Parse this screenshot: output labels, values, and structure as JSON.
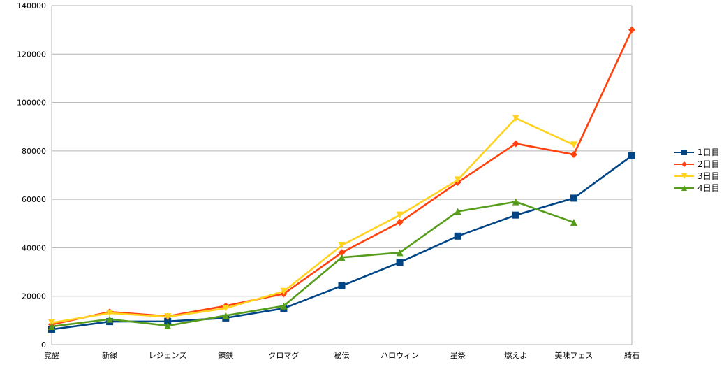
{
  "chart_data": {
    "type": "line",
    "title": "",
    "xlabel": "",
    "ylabel": "",
    "ylim": [
      0,
      140000
    ],
    "yticks": [
      0,
      20000,
      40000,
      60000,
      80000,
      100000,
      120000,
      140000
    ],
    "grid": "horizontal",
    "legend_position": "right",
    "categories": [
      "覚醒",
      "新緑",
      "レジェンズ",
      "錬鉄",
      "クロマグ",
      "秘伝",
      "ハロウィン",
      "星祭",
      "燃えよ",
      "美味フェス",
      "綺石"
    ],
    "series": [
      {
        "name": "1日目",
        "color": "#004586",
        "marker": "square",
        "values": [
          6300,
          9500,
          9600,
          11000,
          15000,
          24300,
          34000,
          44800,
          53500,
          60500,
          78000
        ]
      },
      {
        "name": "2日目",
        "color": "#ff420e",
        "marker": "diamond",
        "values": [
          8300,
          13500,
          11700,
          16000,
          21000,
          38000,
          50500,
          67000,
          83000,
          78500,
          130000
        ]
      },
      {
        "name": "3日目",
        "color": "#ffd320",
        "marker": "triangle-down",
        "values": [
          9000,
          13000,
          11500,
          15000,
          22000,
          41000,
          53500,
          68000,
          93500,
          82500,
          null
        ]
      },
      {
        "name": "4日目",
        "color": "#579d1c",
        "marker": "triangle-up",
        "values": [
          7500,
          10500,
          7800,
          12000,
          16000,
          36000,
          38000,
          55000,
          59000,
          50500,
          null
        ]
      }
    ]
  }
}
